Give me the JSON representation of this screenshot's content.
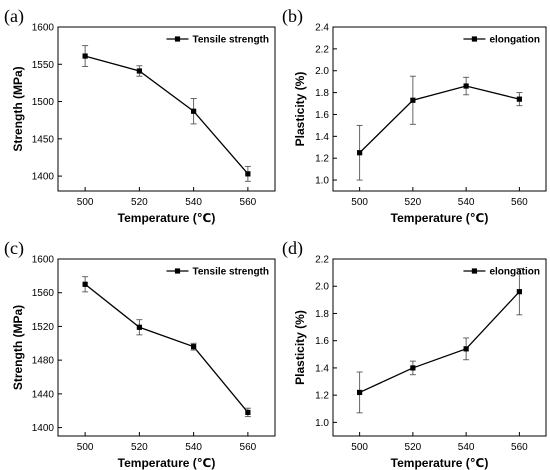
{
  "chart_data": [
    {
      "panel_label": "(a)",
      "type": "line",
      "xlabel": "Temperature (℃)",
      "ylabel": "Strength (MPa)",
      "xlim": [
        490,
        570
      ],
      "ylim": [
        1380,
        1600
      ],
      "xticks": [
        500,
        520,
        540,
        560
      ],
      "yticks": [
        1400,
        1450,
        1500,
        1550,
        1600
      ],
      "legend_position": "top-right",
      "grid": false,
      "series": [
        {
          "name": "Tensile strength",
          "x": [
            500,
            520,
            540,
            560
          ],
          "y": [
            1561,
            1541,
            1487,
            1403
          ],
          "error": [
            14,
            7,
            17,
            10
          ]
        }
      ]
    },
    {
      "panel_label": "(b)",
      "type": "line",
      "xlabel": "Temperature (℃)",
      "ylabel": "Plasticity (%)",
      "xlim": [
        490,
        570
      ],
      "ylim": [
        0.9,
        2.4
      ],
      "xticks": [
        500,
        520,
        540,
        560
      ],
      "yticks": [
        1.0,
        1.2,
        1.4,
        1.6,
        1.8,
        2.0,
        2.2,
        2.4
      ],
      "legend_position": "top-right",
      "grid": false,
      "series": [
        {
          "name": "elongation",
          "x": [
            500,
            520,
            540,
            560
          ],
          "y": [
            1.25,
            1.73,
            1.86,
            1.74
          ],
          "error": [
            0.25,
            0.22,
            0.08,
            0.06
          ]
        }
      ]
    },
    {
      "panel_label": "(c)",
      "type": "line",
      "xlabel": "Temperature (℃)",
      "ylabel": "Strength (MPa)",
      "xlim": [
        490,
        570
      ],
      "ylim": [
        1390,
        1600
      ],
      "xticks": [
        500,
        520,
        540,
        560
      ],
      "yticks": [
        1400,
        1440,
        1480,
        1520,
        1560,
        1600
      ],
      "legend_position": "top-right",
      "grid": false,
      "series": [
        {
          "name": "Tensile strength",
          "x": [
            500,
            520,
            540,
            560
          ],
          "y": [
            1570,
            1519,
            1496,
            1418
          ],
          "error": [
            9,
            9,
            4,
            5
          ]
        }
      ]
    },
    {
      "panel_label": "(d)",
      "type": "line",
      "xlabel": "Temperature (℃)",
      "ylabel": "Plasticity (%)",
      "xlim": [
        490,
        570
      ],
      "ylim": [
        0.9,
        2.2
      ],
      "xticks": [
        500,
        520,
        540,
        560
      ],
      "yticks": [
        1.0,
        1.2,
        1.4,
        1.6,
        1.8,
        2.0,
        2.2
      ],
      "legend_position": "top-right",
      "grid": false,
      "series": [
        {
          "name": "elongation",
          "x": [
            500,
            520,
            540,
            560
          ],
          "y": [
            1.22,
            1.4,
            1.54,
            1.96
          ],
          "error": [
            0.15,
            0.05,
            0.08,
            0.17
          ]
        }
      ]
    }
  ]
}
